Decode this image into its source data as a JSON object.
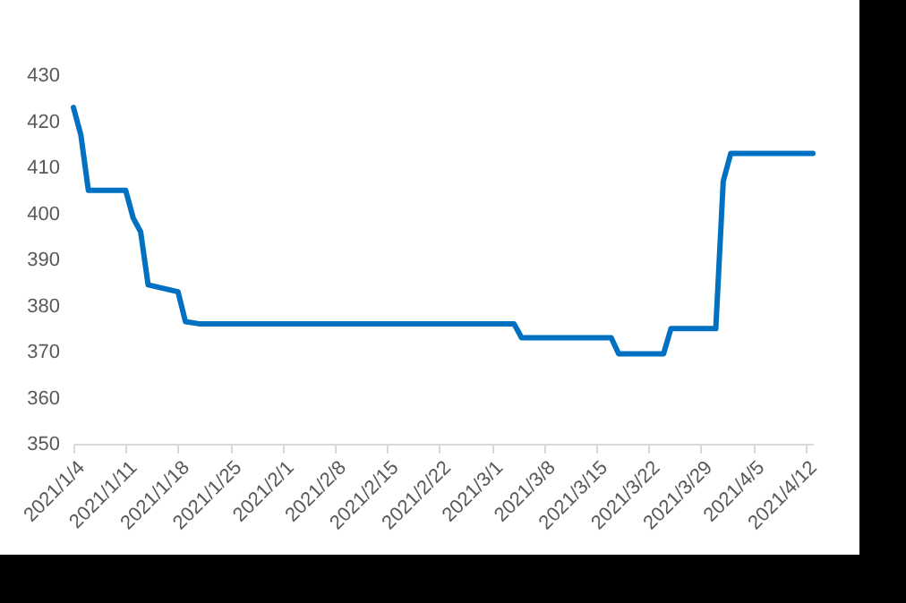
{
  "chart_data": {
    "type": "line",
    "x": [
      "2021-01-04",
      "2021-01-05",
      "2021-01-06",
      "2021-01-11",
      "2021-01-12",
      "2021-01-13",
      "2021-01-14",
      "2021-01-18",
      "2021-01-19",
      "2021-01-21",
      "2021-03-04",
      "2021-03-05",
      "2021-03-17",
      "2021-03-18",
      "2021-03-24",
      "2021-03-25",
      "2021-03-31",
      "2021-04-01",
      "2021-04-02",
      "2021-04-13"
    ],
    "series": [
      {
        "color": "#0070c0",
        "values": [
          423,
          417,
          405,
          405,
          399,
          396,
          384.5,
          383,
          376.5,
          376,
          376,
          373,
          373,
          369.5,
          369.5,
          375,
          375,
          407,
          413,
          413
        ]
      }
    ],
    "xlim": [
      "2021-01-04",
      "2021-04-13"
    ],
    "xticks": [
      {
        "value": "2021-01-04",
        "label": "2021/1/4"
      },
      {
        "value": "2021-01-11",
        "label": "2021/1/11"
      },
      {
        "value": "2021-01-18",
        "label": "2021/1/18"
      },
      {
        "value": "2021-01-25",
        "label": "2021/1/25"
      },
      {
        "value": "2021-02-01",
        "label": "2021/2/1"
      },
      {
        "value": "2021-02-08",
        "label": "2021/2/8"
      },
      {
        "value": "2021-02-15",
        "label": "2021/2/15"
      },
      {
        "value": "2021-02-22",
        "label": "2021/2/22"
      },
      {
        "value": "2021-03-01",
        "label": "2021/3/1"
      },
      {
        "value": "2021-03-08",
        "label": "2021/3/8"
      },
      {
        "value": "2021-03-15",
        "label": "2021/3/15"
      },
      {
        "value": "2021-03-22",
        "label": "2021/3/22"
      },
      {
        "value": "2021-03-29",
        "label": "2021/3/29"
      },
      {
        "value": "2021-04-05",
        "label": "2021/4/5"
      },
      {
        "value": "2021-04-12",
        "label": "2021/4/12"
      }
    ],
    "ylim": [
      350,
      430
    ],
    "yticks": [
      350,
      360,
      370,
      380,
      390,
      400,
      410,
      420,
      430
    ],
    "grid": false,
    "marker": "none",
    "line_style": "solid"
  }
}
